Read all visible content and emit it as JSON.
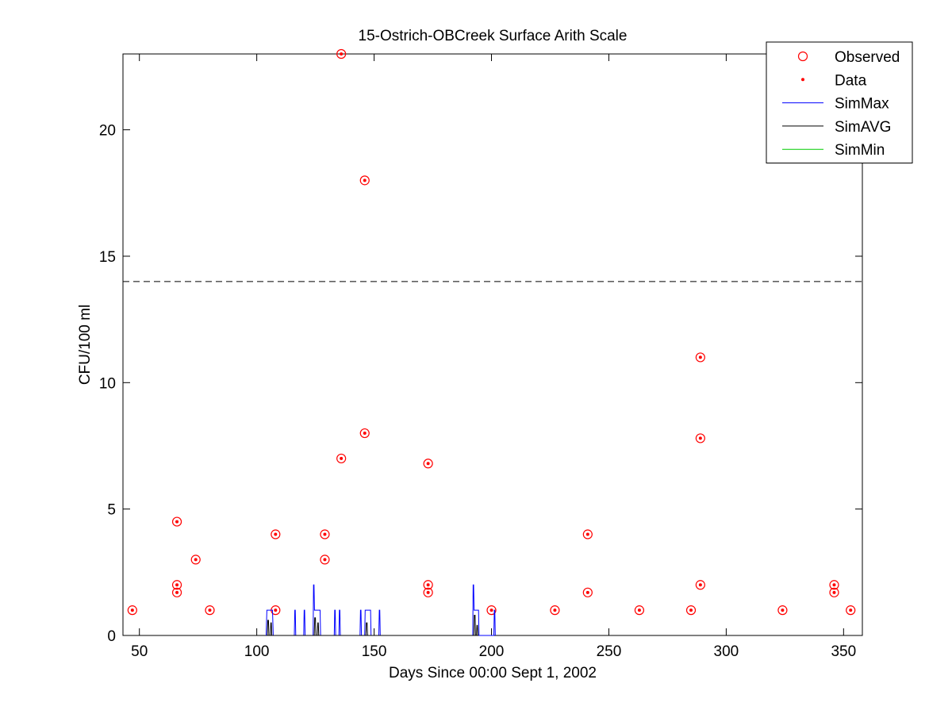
{
  "chart_data": {
    "type": "scatter",
    "title": "15-Ostrich-OBCreek Surface Arith Scale",
    "xlabel": "Days Since 00:00 Sept 1, 2002",
    "ylabel": "CFU/100 ml",
    "xlim": [
      43,
      358
    ],
    "ylim": [
      0,
      23
    ],
    "xticks": [
      50,
      100,
      150,
      200,
      250,
      300,
      350
    ],
    "yticks": [
      0,
      5,
      10,
      15,
      20
    ],
    "grid": false,
    "legend_position": "top-right",
    "reference_line": {
      "y": 14,
      "style": "dashed",
      "color": "#000000"
    },
    "series": [
      {
        "name": "Observed",
        "marker": "circle",
        "color": "#ff0000",
        "points": [
          [
            47,
            1
          ],
          [
            66,
            4.5
          ],
          [
            66,
            2
          ],
          [
            66,
            1.7
          ],
          [
            74,
            3
          ],
          [
            80,
            1
          ],
          [
            108,
            4
          ],
          [
            108,
            1
          ],
          [
            129,
            4
          ],
          [
            129,
            3
          ],
          [
            136,
            23
          ],
          [
            136,
            7
          ],
          [
            146,
            18
          ],
          [
            146,
            8
          ],
          [
            173,
            6.8
          ],
          [
            173,
            2
          ],
          [
            173,
            1.7
          ],
          [
            200,
            1
          ],
          [
            227,
            1
          ],
          [
            241,
            4
          ],
          [
            241,
            1.7
          ],
          [
            263,
            1
          ],
          [
            285,
            1
          ],
          [
            289,
            11
          ],
          [
            289,
            7.8
          ],
          [
            289,
            2
          ],
          [
            324,
            1
          ],
          [
            346,
            2
          ],
          [
            346,
            1.7
          ],
          [
            353,
            1
          ]
        ]
      },
      {
        "name": "Data",
        "marker": "dot",
        "color": "#ff0000",
        "points": [
          [
            47,
            1
          ],
          [
            66,
            4.5
          ],
          [
            66,
            2
          ],
          [
            66,
            1.7
          ],
          [
            74,
            3
          ],
          [
            80,
            1
          ],
          [
            108,
            4
          ],
          [
            108,
            1
          ],
          [
            129,
            4
          ],
          [
            129,
            3
          ],
          [
            136,
            23
          ],
          [
            136,
            7
          ],
          [
            146,
            18
          ],
          [
            146,
            8
          ],
          [
            173,
            6.8
          ],
          [
            173,
            2
          ],
          [
            173,
            1.7
          ],
          [
            200,
            1
          ],
          [
            227,
            1
          ],
          [
            241,
            4
          ],
          [
            241,
            1.7
          ],
          [
            263,
            1
          ],
          [
            285,
            1
          ],
          [
            289,
            11
          ],
          [
            289,
            7.8
          ],
          [
            289,
            2
          ],
          [
            324,
            1
          ],
          [
            346,
            2
          ],
          [
            346,
            1.7
          ],
          [
            353,
            1
          ]
        ]
      },
      {
        "name": "SimMax",
        "type": "line",
        "color": "#0000ff",
        "points": [
          [
            104,
            0
          ],
          [
            104.3,
            1
          ],
          [
            106.7,
            1
          ],
          [
            107,
            0
          ],
          [
            116,
            0
          ],
          [
            116.2,
            1
          ],
          [
            116.4,
            1
          ],
          [
            116.6,
            0
          ],
          [
            120,
            0
          ],
          [
            120.2,
            1
          ],
          [
            120.4,
            1
          ],
          [
            120.6,
            0
          ],
          [
            124,
            0
          ],
          [
            124.2,
            2
          ],
          [
            124.4,
            2
          ],
          [
            124.6,
            1
          ],
          [
            127,
            1
          ],
          [
            127.2,
            0
          ],
          [
            133,
            0
          ],
          [
            133.2,
            1
          ],
          [
            133.4,
            1
          ],
          [
            133.6,
            0
          ],
          [
            135,
            0
          ],
          [
            135.2,
            1
          ],
          [
            135.4,
            1
          ],
          [
            135.6,
            0
          ],
          [
            144,
            0
          ],
          [
            144.2,
            1
          ],
          [
            144.4,
            1
          ],
          [
            144.6,
            0
          ],
          [
            146,
            0
          ],
          [
            146.2,
            1
          ],
          [
            148.5,
            1
          ],
          [
            148.7,
            0
          ],
          [
            152,
            0
          ],
          [
            152.2,
            1
          ],
          [
            152.4,
            1
          ],
          [
            152.6,
            0
          ],
          [
            192,
            0
          ],
          [
            192.2,
            2
          ],
          [
            192.4,
            2
          ],
          [
            192.6,
            1
          ],
          [
            194.5,
            1
          ],
          [
            194.7,
            0
          ],
          [
            201,
            0
          ],
          [
            201.2,
            1
          ],
          [
            201.4,
            1
          ],
          [
            201.6,
            0
          ]
        ]
      },
      {
        "name": "SimAVG",
        "type": "line",
        "color": "#000000",
        "points": [
          [
            104.5,
            0
          ],
          [
            104.7,
            0.6
          ],
          [
            105,
            0.6
          ],
          [
            105.2,
            0
          ],
          [
            105.8,
            0
          ],
          [
            106,
            0.5
          ],
          [
            106.2,
            0.5
          ],
          [
            106.4,
            0
          ],
          [
            124.5,
            0
          ],
          [
            124.7,
            0.7
          ],
          [
            125,
            0.7
          ],
          [
            125.2,
            0
          ],
          [
            125.8,
            0
          ],
          [
            126,
            0.5
          ],
          [
            126.2,
            0.5
          ],
          [
            126.4,
            0
          ],
          [
            146.5,
            0
          ],
          [
            146.7,
            0.5
          ],
          [
            147,
            0.5
          ],
          [
            147.2,
            0
          ],
          [
            192.5,
            0
          ],
          [
            192.7,
            0.8
          ],
          [
            193,
            0.8
          ],
          [
            193.2,
            0
          ],
          [
            193.6,
            0
          ],
          [
            193.8,
            0.4
          ],
          [
            194,
            0.4
          ],
          [
            194.2,
            0
          ]
        ]
      },
      {
        "name": "SimMin",
        "type": "line",
        "color": "#00cc00",
        "points": []
      }
    ]
  }
}
